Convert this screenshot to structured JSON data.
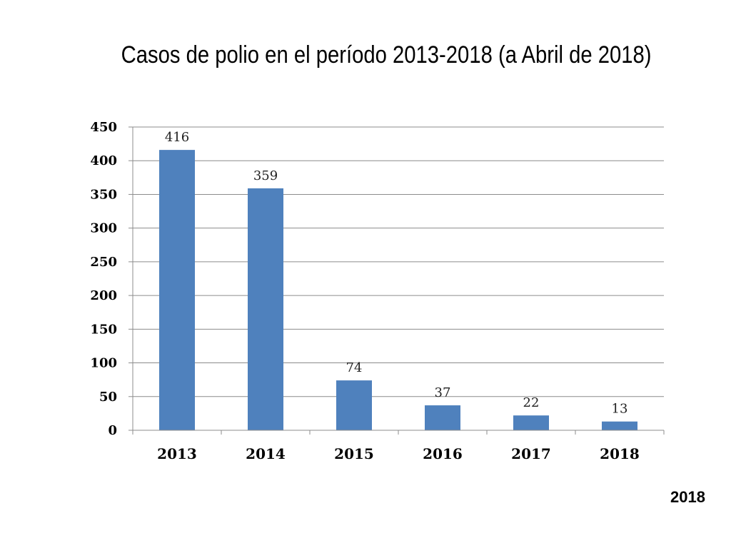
{
  "title": "Casos de polio en el período 2013-2018 (a Abril de 2018)",
  "footer": "2018",
  "colors": {
    "bar": "#4F81BD",
    "grid": "#8c8c8c",
    "axis": "#8c8c8c"
  },
  "chart_data": {
    "type": "bar",
    "title": "Casos de polio en el período 2013-2018 (a Abril de 2018)",
    "categories": [
      "2013",
      "2014",
      "2015",
      "2016",
      "2017",
      "2018"
    ],
    "values": [
      416,
      359,
      74,
      37,
      22,
      13
    ],
    "data_labels": [
      "416",
      "359",
      "74",
      "37",
      "22",
      "13"
    ],
    "yticks": [
      0,
      50,
      100,
      150,
      200,
      250,
      300,
      350,
      400,
      450
    ],
    "ylim": [
      0,
      450
    ],
    "xlabel": "",
    "ylabel": "",
    "grid": true,
    "legend": "none"
  }
}
